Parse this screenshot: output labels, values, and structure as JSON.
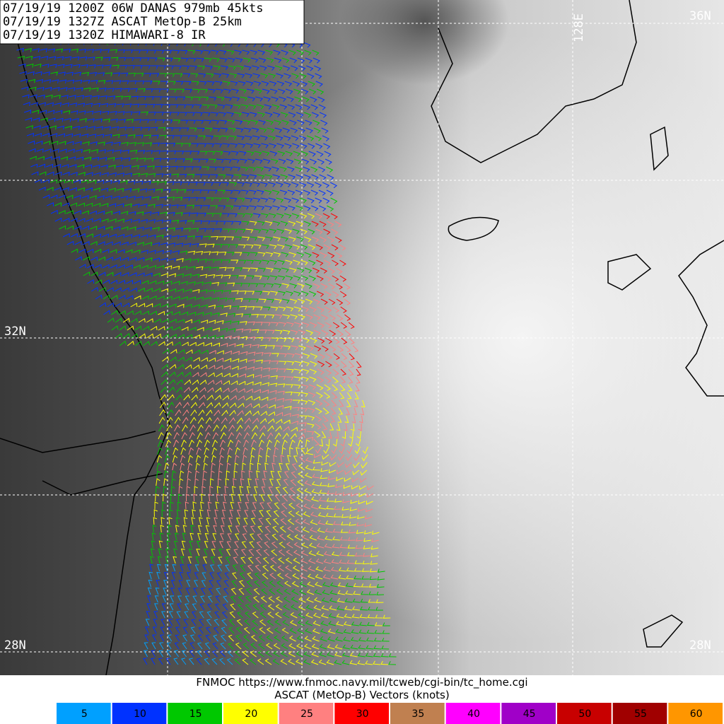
{
  "header": {
    "lines": [
      "07/19/19 1200Z  06W DANAS 979mb 45kts",
      "07/19/19 1327Z  ASCAT MetOp-B 25km",
      "07/19/19 1320Z  HIMAWARI-8 IR"
    ]
  },
  "map": {
    "lat_labels": {
      "top_right": "36N",
      "left_middle": "32N",
      "bottom_left": "28N",
      "bottom_right": "28N"
    },
    "lon_label": "128E"
  },
  "footer": {
    "source": "FNMOC https://www.fnmoc.navy.mil/tcweb/cgi-bin/tc_home.cgi",
    "product": "ASCAT (MetOp-B) Vectors (knots)"
  },
  "legend": [
    {
      "label": 5,
      "color": "#00a0ff"
    },
    {
      "label": 10,
      "color": "#0032ff"
    },
    {
      "label": 15,
      "color": "#00c800"
    },
    {
      "label": 20,
      "color": "#ffff00"
    },
    {
      "label": 25,
      "color": "#ff8080"
    },
    {
      "label": 30,
      "color": "#ff0000"
    },
    {
      "label": 35,
      "color": "#c08050"
    },
    {
      "label": 40,
      "color": "#ff00ff"
    },
    {
      "label": 45,
      "color": "#a000c8"
    },
    {
      "label": 50,
      "color": "#c80000"
    },
    {
      "label": 55,
      "color": "#a00000"
    },
    {
      "label": 60,
      "color": "#ff9600"
    }
  ]
}
